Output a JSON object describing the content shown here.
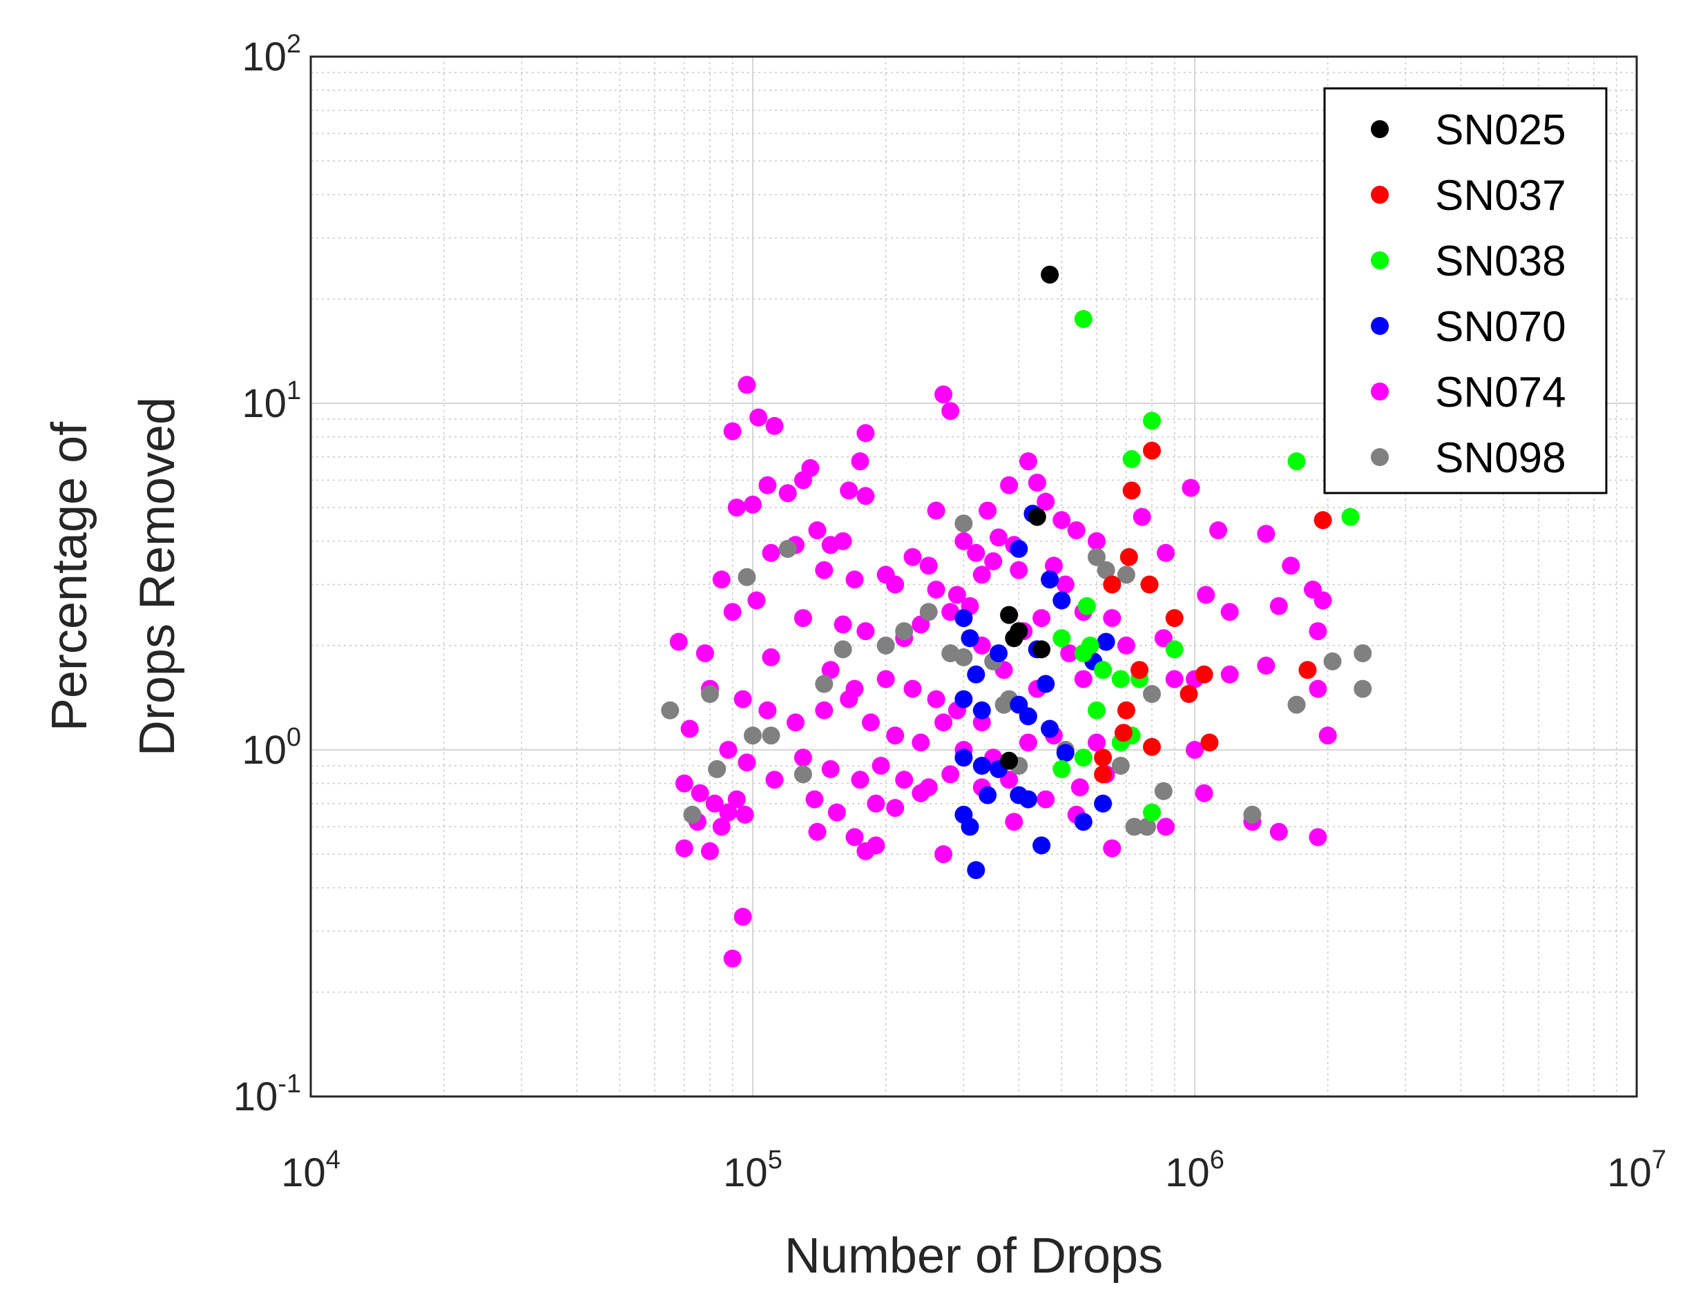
{
  "chart_data": {
    "type": "scatter",
    "title": "",
    "xlabel": "Number of Drops",
    "ylabel": [
      "Percentage of",
      "Drops Removed"
    ],
    "xscale": "log",
    "yscale": "log",
    "xlim": [
      10000,
      10000000
    ],
    "ylim": [
      0.1,
      100
    ],
    "grid": true,
    "legend_location": "top-right",
    "xticks": [
      {
        "base": "10",
        "exp": "4",
        "value": 10000
      },
      {
        "base": "10",
        "exp": "5",
        "value": 100000
      },
      {
        "base": "10",
        "exp": "6",
        "value": 1000000
      },
      {
        "base": "10",
        "exp": "7",
        "value": 10000000
      }
    ],
    "yticks": [
      {
        "base": "10",
        "exp": "-1",
        "value": 0.1
      },
      {
        "base": "10",
        "exp": "0",
        "value": 1
      },
      {
        "base": "10",
        "exp": "1",
        "value": 10
      },
      {
        "base": "10",
        "exp": "2",
        "value": 100
      }
    ],
    "series": [
      {
        "name": "SN025",
        "color": "#000000",
        "points": [
          [
            470000,
            23.5
          ],
          [
            380000,
            2.45
          ],
          [
            390000,
            2.1
          ],
          [
            450000,
            1.95
          ],
          [
            440000,
            4.7
          ],
          [
            380000,
            0.93
          ],
          [
            400000,
            2.2
          ]
        ]
      },
      {
        "name": "SN037",
        "color": "#ff0000",
        "points": [
          [
            800000,
            7.3
          ],
          [
            720000,
            5.6
          ],
          [
            710000,
            3.6
          ],
          [
            650000,
            3.0
          ],
          [
            790000,
            3.0
          ],
          [
            900000,
            2.4
          ],
          [
            1050000,
            1.65
          ],
          [
            970000,
            1.45
          ],
          [
            1080000,
            1.05
          ],
          [
            800000,
            1.02
          ],
          [
            700000,
            1.3
          ],
          [
            690000,
            1.12
          ],
          [
            620000,
            0.85
          ],
          [
            1950000,
            4.6
          ],
          [
            1800000,
            1.7
          ],
          [
            750000,
            1.7
          ],
          [
            620000,
            0.95
          ]
        ]
      },
      {
        "name": "SN038",
        "color": "#00ff00",
        "points": [
          [
            560000,
            17.5
          ],
          [
            800000,
            8.9
          ],
          [
            720000,
            6.9
          ],
          [
            1700000,
            6.8
          ],
          [
            2250000,
            4.7
          ],
          [
            570000,
            2.6
          ],
          [
            500000,
            2.1
          ],
          [
            560000,
            1.9
          ],
          [
            680000,
            1.6
          ],
          [
            900000,
            1.95
          ],
          [
            750000,
            1.6
          ],
          [
            600000,
            1.3
          ],
          [
            720000,
            1.1
          ],
          [
            680000,
            1.05
          ],
          [
            500000,
            0.88
          ],
          [
            560000,
            0.95
          ],
          [
            800000,
            0.66
          ],
          [
            620000,
            1.7
          ],
          [
            580000,
            2.0
          ]
        ]
      },
      {
        "name": "SN070",
        "color": "#0000ff",
        "points": [
          [
            430000,
            4.8
          ],
          [
            400000,
            3.8
          ],
          [
            470000,
            3.1
          ],
          [
            500000,
            2.7
          ],
          [
            300000,
            2.4
          ],
          [
            310000,
            2.1
          ],
          [
            360000,
            1.9
          ],
          [
            320000,
            1.65
          ],
          [
            300000,
            1.4
          ],
          [
            330000,
            1.3
          ],
          [
            400000,
            1.35
          ],
          [
            420000,
            1.25
          ],
          [
            460000,
            1.55
          ],
          [
            440000,
            1.95
          ],
          [
            300000,
            0.95
          ],
          [
            330000,
            0.9
          ],
          [
            360000,
            0.88
          ],
          [
            300000,
            0.65
          ],
          [
            340000,
            0.74
          ],
          [
            400000,
            0.74
          ],
          [
            420000,
            0.72
          ],
          [
            310000,
            0.6
          ],
          [
            450000,
            0.53
          ],
          [
            320000,
            0.45
          ],
          [
            560000,
            0.62
          ],
          [
            620000,
            0.7
          ],
          [
            630000,
            2.05
          ],
          [
            470000,
            1.15
          ],
          [
            510000,
            0.98
          ],
          [
            590000,
            1.8
          ]
        ]
      },
      {
        "name": "SN074",
        "color": "#ff00ff",
        "points": [
          [
            97000,
            11.3
          ],
          [
            270000,
            10.6
          ],
          [
            280000,
            9.5
          ],
          [
            103000,
            9.1
          ],
          [
            112000,
            8.6
          ],
          [
            90000,
            8.3
          ],
          [
            180000,
            8.2
          ],
          [
            175000,
            6.8
          ],
          [
            420000,
            6.8
          ],
          [
            135000,
            6.5
          ],
          [
            130000,
            6.0
          ],
          [
            108000,
            5.8
          ],
          [
            120000,
            5.5
          ],
          [
            165000,
            5.6
          ],
          [
            180000,
            5.4
          ],
          [
            380000,
            5.8
          ],
          [
            440000,
            5.9
          ],
          [
            460000,
            5.2
          ],
          [
            92000,
            5.0
          ],
          [
            100000,
            5.1
          ],
          [
            260000,
            4.9
          ],
          [
            340000,
            4.9
          ],
          [
            500000,
            4.6
          ],
          [
            540000,
            4.3
          ],
          [
            600000,
            4.0
          ],
          [
            760000,
            4.7
          ],
          [
            980000,
            5.7
          ],
          [
            1130000,
            4.3
          ],
          [
            1450000,
            4.2
          ],
          [
            140000,
            4.3
          ],
          [
            150000,
            3.9
          ],
          [
            160000,
            4.0
          ],
          [
            110000,
            3.7
          ],
          [
            125000,
            3.9
          ],
          [
            300000,
            4.0
          ],
          [
            320000,
            3.7
          ],
          [
            360000,
            4.1
          ],
          [
            390000,
            3.9
          ],
          [
            230000,
            3.6
          ],
          [
            250000,
            3.4
          ],
          [
            200000,
            3.2
          ],
          [
            145000,
            3.3
          ],
          [
            170000,
            3.1
          ],
          [
            210000,
            3.0
          ],
          [
            260000,
            2.9
          ],
          [
            290000,
            2.8
          ],
          [
            330000,
            3.2
          ],
          [
            350000,
            3.5
          ],
          [
            400000,
            3.3
          ],
          [
            480000,
            3.4
          ],
          [
            510000,
            3.0
          ],
          [
            560000,
            2.5
          ],
          [
            650000,
            2.4
          ],
          [
            860000,
            3.7
          ],
          [
            1060000,
            2.8
          ],
          [
            1200000,
            2.5
          ],
          [
            1550000,
            2.6
          ],
          [
            1650000,
            3.4
          ],
          [
            1850000,
            2.9
          ],
          [
            1950000,
            2.7
          ],
          [
            85000,
            3.1
          ],
          [
            102000,
            2.7
          ],
          [
            90000,
            2.5
          ],
          [
            130000,
            2.4
          ],
          [
            160000,
            2.3
          ],
          [
            180000,
            2.2
          ],
          [
            220000,
            2.1
          ],
          [
            240000,
            2.3
          ],
          [
            280000,
            2.5
          ],
          [
            310000,
            2.6
          ],
          [
            330000,
            2.0
          ],
          [
            410000,
            2.2
          ],
          [
            450000,
            2.4
          ],
          [
            520000,
            1.9
          ],
          [
            700000,
            2.0
          ],
          [
            850000,
            2.1
          ],
          [
            1200000,
            1.65
          ],
          [
            1450000,
            1.75
          ],
          [
            1900000,
            2.2
          ],
          [
            68000,
            2.05
          ],
          [
            78000,
            1.9
          ],
          [
            110000,
            1.85
          ],
          [
            150000,
            1.7
          ],
          [
            170000,
            1.5
          ],
          [
            200000,
            1.6
          ],
          [
            230000,
            1.5
          ],
          [
            260000,
            1.4
          ],
          [
            290000,
            1.3
          ],
          [
            330000,
            1.2
          ],
          [
            370000,
            1.7
          ],
          [
            440000,
            1.5
          ],
          [
            560000,
            1.6
          ],
          [
            900000,
            1.6
          ],
          [
            1000000,
            1.6
          ],
          [
            1900000,
            1.5
          ],
          [
            80000,
            1.5
          ],
          [
            95000,
            1.4
          ],
          [
            108000,
            1.3
          ],
          [
            125000,
            1.2
          ],
          [
            145000,
            1.3
          ],
          [
            165000,
            1.4
          ],
          [
            185000,
            1.2
          ],
          [
            210000,
            1.1
          ],
          [
            240000,
            1.05
          ],
          [
            270000,
            1.2
          ],
          [
            300000,
            1.0
          ],
          [
            350000,
            0.95
          ],
          [
            420000,
            1.05
          ],
          [
            480000,
            1.1
          ],
          [
            600000,
            1.05
          ],
          [
            1000000,
            1.0
          ],
          [
            2000000,
            1.1
          ],
          [
            72000,
            1.15
          ],
          [
            88000,
            1.0
          ],
          [
            97000,
            0.92
          ],
          [
            112000,
            0.82
          ],
          [
            130000,
            0.95
          ],
          [
            150000,
            0.88
          ],
          [
            175000,
            0.82
          ],
          [
            195000,
            0.9
          ],
          [
            220000,
            0.82
          ],
          [
            250000,
            0.78
          ],
          [
            280000,
            0.85
          ],
          [
            330000,
            0.78
          ],
          [
            380000,
            0.82
          ],
          [
            460000,
            0.72
          ],
          [
            550000,
            0.78
          ],
          [
            630000,
            0.85
          ],
          [
            1050000,
            0.75
          ],
          [
            1350000,
            0.62
          ],
          [
            70000,
            0.8
          ],
          [
            76000,
            0.75
          ],
          [
            82000,
            0.7
          ],
          [
            88000,
            0.66
          ],
          [
            92000,
            0.72
          ],
          [
            96000,
            0.65
          ],
          [
            75000,
            0.62
          ],
          [
            85000,
            0.6
          ],
          [
            138000,
            0.72
          ],
          [
            155000,
            0.66
          ],
          [
            190000,
            0.7
          ],
          [
            210000,
            0.68
          ],
          [
            240000,
            0.75
          ],
          [
            70000,
            0.52
          ],
          [
            80000,
            0.51
          ],
          [
            140000,
            0.58
          ],
          [
            170000,
            0.56
          ],
          [
            180000,
            0.51
          ],
          [
            190000,
            0.53
          ],
          [
            270000,
            0.5
          ],
          [
            390000,
            0.62
          ],
          [
            540000,
            0.65
          ],
          [
            650000,
            0.52
          ],
          [
            860000,
            0.6
          ],
          [
            1550000,
            0.58
          ],
          [
            1900000,
            0.56
          ],
          [
            95000,
            0.33
          ],
          [
            90000,
            0.25
          ]
        ]
      },
      {
        "name": "SN098",
        "color": "#808080",
        "points": [
          [
            97000,
            3.15
          ],
          [
            300000,
            4.5
          ],
          [
            250000,
            2.5
          ],
          [
            220000,
            2.2
          ],
          [
            200000,
            2.0
          ],
          [
            280000,
            1.9
          ],
          [
            300000,
            1.85
          ],
          [
            350000,
            1.8
          ],
          [
            160000,
            1.95
          ],
          [
            380000,
            1.4
          ],
          [
            370000,
            1.35
          ],
          [
            400000,
            0.9
          ],
          [
            600000,
            3.6
          ],
          [
            630000,
            3.3
          ],
          [
            700000,
            3.2
          ],
          [
            620000,
            1.7
          ],
          [
            800000,
            1.45
          ],
          [
            680000,
            0.9
          ],
          [
            730000,
            0.6
          ],
          [
            780000,
            0.6
          ],
          [
            850000,
            0.76
          ],
          [
            1700000,
            1.35
          ],
          [
            2050000,
            1.8
          ],
          [
            2400000,
            1.9
          ],
          [
            2400000,
            1.5
          ],
          [
            1350000,
            0.65
          ],
          [
            80000,
            1.45
          ],
          [
            65000,
            1.3
          ],
          [
            73000,
            0.65
          ],
          [
            83000,
            0.88
          ],
          [
            100000,
            1.1
          ],
          [
            110000,
            1.1
          ],
          [
            145000,
            1.55
          ],
          [
            120000,
            3.8
          ],
          [
            130000,
            0.85
          ],
          [
            510000,
            1.0
          ]
        ]
      }
    ]
  }
}
